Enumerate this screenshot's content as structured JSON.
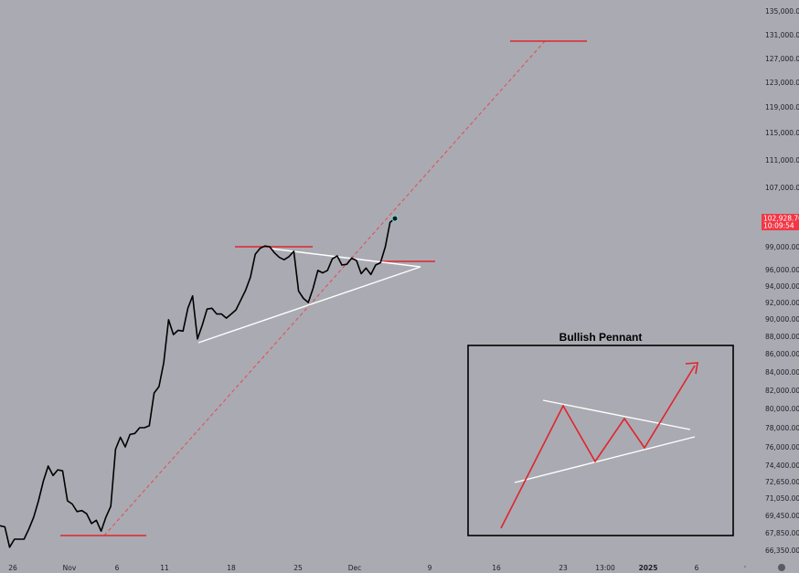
{
  "chart_data": {
    "type": "line",
    "y_axis": {
      "ticks": [
        "135,000.00",
        "131,000.00",
        "127,000.00",
        "123,000.00",
        "119,000.00",
        "115,000.00",
        "111,000.00",
        "107,000.00",
        "99,000.00",
        "96,000.00",
        "94,000.00",
        "92,000.00",
        "90,000.00",
        "88,000.00",
        "86,000.00",
        "84,000.00",
        "82,000.00",
        "80,000.00",
        "78,000.00",
        "76,000.00",
        "74,400.00",
        "72,650.00",
        "71,050.00",
        "69,450.00",
        "67,850.00",
        "66,350.00"
      ]
    },
    "x_axis": {
      "ticks": [
        "26",
        "Nov",
        "6",
        "11",
        "18",
        "25",
        "Dec",
        "9",
        "16",
        "23",
        "13:00",
        "2025",
        "6"
      ]
    },
    "current_price": {
      "value": "102,928.70",
      "countdown": "10:09:54",
      "color": "#f23645"
    },
    "series": [
      {
        "color": "#000000",
        "values": [
          68500,
          68400,
          66600,
          67300,
          67300,
          67300,
          68200,
          69300,
          70800,
          72700,
          74300,
          73300,
          73900,
          73800,
          70800,
          70500,
          69800,
          69900,
          69600,
          68700,
          69000,
          68000,
          69300,
          70300,
          75800,
          77000,
          76000,
          77300,
          77400,
          78000,
          78000,
          78200,
          81700,
          82400,
          85000,
          89900,
          88200,
          88700,
          88600,
          91300,
          92800,
          87700,
          89300,
          91200,
          91300,
          90600,
          90600,
          90100,
          90600,
          91100,
          92300,
          93500,
          95100,
          98000,
          98800,
          99100,
          99000,
          98200,
          97600,
          97300,
          97700,
          98400,
          93400,
          92500,
          92000,
          93700,
          95900,
          95600,
          95900,
          97400,
          97800,
          96600,
          96700,
          97500,
          97200,
          95500,
          96200,
          95400,
          96600,
          96900,
          99000,
          102300,
          102800
        ]
      }
    ],
    "annotations": [
      {
        "type": "target-line",
        "color": "#e0242c",
        "style": "dashed"
      },
      {
        "type": "pennant-triangle",
        "color": "#ffffff"
      },
      {
        "type": "horizontal-levels",
        "color": "#e0242c"
      }
    ],
    "grid": false
  },
  "inset": {
    "title": "Bullish Pennant"
  }
}
